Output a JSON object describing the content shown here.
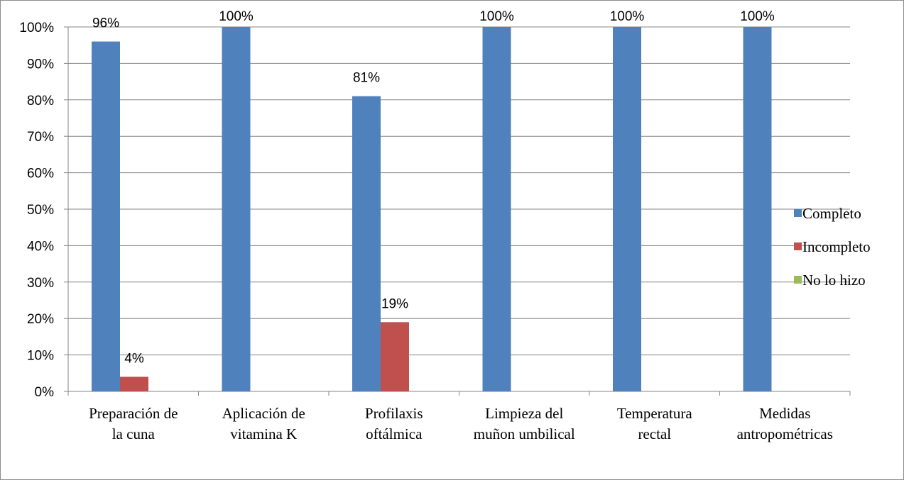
{
  "chart_data": {
    "type": "bar",
    "categories": [
      [
        "Preparación de",
        "la cuna"
      ],
      [
        "Aplicación de",
        "vitamina K"
      ],
      [
        "Profilaxis",
        "oftálmica"
      ],
      [
        "Limpieza del",
        "muñon umbilical"
      ],
      [
        "Temperatura",
        "rectal"
      ],
      [
        "Medidas",
        "antropométricas"
      ]
    ],
    "series": [
      {
        "name": "Completo",
        "color": "#4f81bd",
        "values": [
          96,
          100,
          81,
          100,
          100,
          100
        ],
        "labels": [
          "96%",
          "100%",
          "81%",
          "100%",
          "100%",
          "100%"
        ]
      },
      {
        "name": "Incompleto",
        "color": "#c0504d",
        "values": [
          4,
          0,
          19,
          0,
          0,
          0
        ],
        "labels": [
          "4%",
          "",
          "19%",
          "",
          "",
          ""
        ]
      },
      {
        "name": "No lo hizo",
        "color": "#9bbb59",
        "values": [
          0,
          0,
          0,
          0,
          0,
          0
        ],
        "labels": [
          "",
          "",
          "",
          "",
          "",
          ""
        ]
      }
    ],
    "yticks": [
      "0%",
      "10%",
      "20%",
      "30%",
      "40%",
      "50%",
      "60%",
      "70%",
      "80%",
      "90%",
      "100%"
    ],
    "ylim": [
      0,
      100
    ],
    "grid": true,
    "legend_position": "right",
    "title": "",
    "xlabel": "",
    "ylabel": ""
  }
}
